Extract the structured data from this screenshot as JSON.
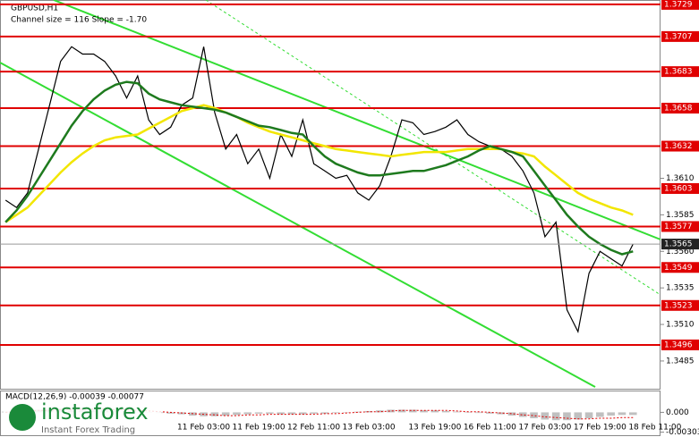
{
  "chart_data": [
    {
      "type": "line",
      "title": "GBPUSD,H1",
      "subtitle": "Channel size = 116 Slope = -1.70",
      "categories": [
        null,
        null,
        null,
        null,
        null,
        null,
        null,
        null,
        null,
        null,
        null,
        null,
        null,
        null,
        null,
        null,
        null,
        null,
        "11 Feb 03:00",
        null,
        null,
        null,
        null,
        "11 Feb 19:00",
        null,
        null,
        null,
        null,
        "12 Feb 11:00",
        null,
        null,
        null,
        null,
        "13 Feb 03:00",
        null,
        null,
        null,
        null,
        null,
        "13 Feb 19:00",
        null,
        null,
        null,
        null,
        "16 Feb 11:00",
        null,
        null,
        null,
        null,
        "17 Feb 03:00",
        null,
        null,
        null,
        null,
        "17 Feb 19:00",
        null,
        null,
        null,
        null,
        "18 Feb 11:00"
      ],
      "series": [
        {
          "color": "#000000",
          "values": [
            1.3595,
            1.359,
            1.36,
            1.363,
            1.366,
            1.369,
            1.37,
            1.3695,
            1.3695,
            1.369,
            1.368,
            1.3665,
            1.368,
            1.365,
            1.364,
            1.3645,
            1.366,
            1.3665,
            1.37,
            1.3655,
            1.363,
            1.364,
            1.362,
            1.363,
            1.361,
            1.364,
            1.3625,
            1.365,
            1.362,
            1.3615,
            1.361,
            1.3612,
            1.36,
            1.3595,
            1.3605,
            1.3625,
            1.365,
            1.3648,
            1.364,
            1.3642,
            1.3645,
            1.365,
            1.364,
            1.3635,
            1.3632,
            1.363,
            1.3625,
            1.3615,
            1.36,
            1.357,
            1.358,
            1.352,
            1.3505,
            1.3545,
            1.356,
            1.3555,
            1.355,
            1.3565,
            null,
            null
          ]
        },
        {
          "color": "#f2e600",
          "values": [
            1.358,
            1.3585,
            1.359,
            1.3598,
            1.3606,
            1.3614,
            1.3621,
            1.3627,
            1.3632,
            1.3636,
            1.3638,
            1.3639,
            1.364,
            1.3644,
            1.3648,
            1.3652,
            1.3656,
            1.3658,
            1.366,
            1.3658,
            1.3655,
            1.3652,
            1.3648,
            1.3645,
            1.3642,
            1.364,
            1.3638,
            1.3636,
            1.3634,
            1.3632,
            1.363,
            1.3629,
            1.3628,
            1.3627,
            1.3626,
            1.3625,
            1.3626,
            1.3627,
            1.3628,
            1.3628,
            1.3628,
            1.3629,
            1.363,
            1.363,
            1.363,
            1.363,
            1.3628,
            1.3627,
            1.3625,
            1.3618,
            1.3612,
            1.3606,
            1.36,
            1.3596,
            1.3593,
            1.359,
            1.3588,
            1.3585,
            null,
            null
          ]
        },
        {
          "color": "#1e7a1e",
          "values": [
            1.358,
            1.3588,
            1.3598,
            1.361,
            1.3622,
            1.3634,
            1.3646,
            1.3656,
            1.3664,
            1.367,
            1.3674,
            1.3676,
            1.3675,
            1.3668,
            1.3664,
            1.3662,
            1.366,
            1.3659,
            1.3658,
            1.3657,
            1.3655,
            1.3652,
            1.3649,
            1.3646,
            1.3645,
            1.3643,
            1.3641,
            1.364,
            1.3632,
            1.3625,
            1.362,
            1.3617,
            1.3614,
            1.3612,
            1.3612,
            1.3613,
            1.3614,
            1.3615,
            1.3615,
            1.3617,
            1.3619,
            1.3622,
            1.3625,
            1.3629,
            1.3632,
            1.363,
            1.3628,
            1.3625,
            1.3615,
            1.3605,
            1.3595,
            1.3585,
            1.3577,
            1.357,
            1.3565,
            1.3561,
            1.3558,
            1.356,
            null,
            null
          ]
        }
      ],
      "ylim": [
        1.3466,
        1.3732
      ],
      "yticks": [
        1.3485,
        {
          "value": 1.351,
          "label": "1.3510"
        },
        1.3535,
        {
          "value": 1.356,
          "label": "1.3560"
        },
        1.3585,
        {
          "value": 1.361,
          "label": "1.3610"
        }
      ],
      "levels": [
        1.3729,
        1.3707,
        1.3683,
        1.3658,
        1.3632,
        1.3603,
        1.3577,
        1.3549,
        1.3523,
        1.3496
      ],
      "level_color": "#e00000",
      "last_price": 1.3565
    },
    {
      "type": "bar",
      "title": "MACD(12,26,9) -0.00039 -0.00077",
      "series": [
        {
          "color": "#c0c0c0",
          "values": [
            0.0001,
            0.0002,
            0.0003,
            0.0004,
            0.0005,
            0.0006,
            0.0006,
            0.0005,
            0.0005,
            0.0004,
            0.0003,
            0.0002,
            0.0001,
            0,
            -0.0001,
            -0.0002,
            -0.0003,
            -0.0005,
            -0.0006,
            -0.0006,
            -0.0005,
            -0.0004,
            -0.0003,
            -0.0002,
            -0.0002,
            -0.0003,
            -0.0003,
            -0.0003,
            -0.0002,
            -0.0002,
            -0.0001,
            0,
            0.0001,
            0.0002,
            0.0003,
            0.0004,
            0.0004,
            0.0004,
            0.0003,
            0.0003,
            0.0002,
            0.0001,
            0,
            -0.0001,
            -0.0002,
            -0.0003,
            -0.0005,
            -0.0007,
            -0.0009,
            -0.0011,
            -0.0012,
            -0.0012,
            -0.0011,
            -0.0009,
            -0.0007,
            -0.0005,
            -0.0004,
            -0.0004,
            null,
            null
          ]
        },
        {
          "color": "#e00000",
          "values": [
            0,
            0.0001,
            0.0002,
            0.0003,
            0.0003,
            0.0004,
            0.0005,
            0.0005,
            0.0005,
            0.0005,
            0.0004,
            0.0004,
            0.0003,
            0.0002,
            0.0001,
            0,
            -0.0001,
            -0.0002,
            -0.0003,
            -0.0004,
            -0.0005,
            -0.0005,
            -0.0004,
            -0.0004,
            -0.0003,
            -0.0003,
            -0.0003,
            -0.0003,
            -0.0003,
            -0.0002,
            -0.0002,
            -0.0001,
            0,
            0.0001,
            0.0001,
            0.0002,
            0.0003,
            0.0003,
            0.0003,
            0.0003,
            0.0003,
            0.0002,
            0.0001,
            0.0001,
            0,
            -0.0001,
            -0.0002,
            -0.0004,
            -0.0005,
            -0.0007,
            -0.0008,
            -0.0009,
            -0.001,
            -0.001,
            -0.0009,
            -0.0009,
            -0.0008,
            -0.0008,
            null,
            null
          ]
        }
      ],
      "ylim": [
        -0.0035,
        0.0032
      ],
      "yticks": [
        {
          "value": 0,
          "label": "0.000"
        },
        -0.00303
      ]
    }
  ],
  "logo": {
    "name": "instaforex",
    "tagline": "Instant Forex Trading"
  }
}
